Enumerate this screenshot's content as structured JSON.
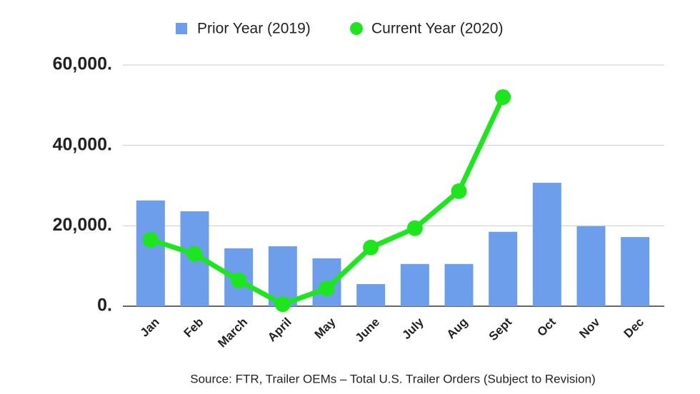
{
  "chart_data": {
    "type": "combo",
    "source": "Source: FTR, Trailer OEMs – Total U.S. Trailer Orders (Subject to Revision)",
    "categories": [
      "Jan",
      "Feb",
      "March",
      "April",
      "May",
      "June",
      "July",
      "Aug",
      "Sept",
      "Oct",
      "Nov",
      "Dec"
    ],
    "series": [
      {
        "name": "Prior Year (2019)",
        "type": "bar",
        "color": "#6d9eeb",
        "values": [
          26300,
          23600,
          14400,
          14900,
          11900,
          5500,
          10500,
          10500,
          18500,
          30700,
          19900,
          17200
        ]
      },
      {
        "name": "Current Year (2020)",
        "type": "line",
        "color": "#1ee61e",
        "values": [
          16500,
          13000,
          6400,
          500,
          4400,
          14600,
          19400,
          28600,
          52000,
          null,
          null,
          null
        ]
      }
    ],
    "ylim": [
      0,
      60000
    ],
    "yticks": [
      {
        "value": 0,
        "label": "0."
      },
      {
        "value": 20000,
        "label": "20,000."
      },
      {
        "value": 40000,
        "label": "40,000."
      },
      {
        "value": 60000,
        "label": "60,000."
      }
    ],
    "grid": true,
    "legend": "top"
  }
}
